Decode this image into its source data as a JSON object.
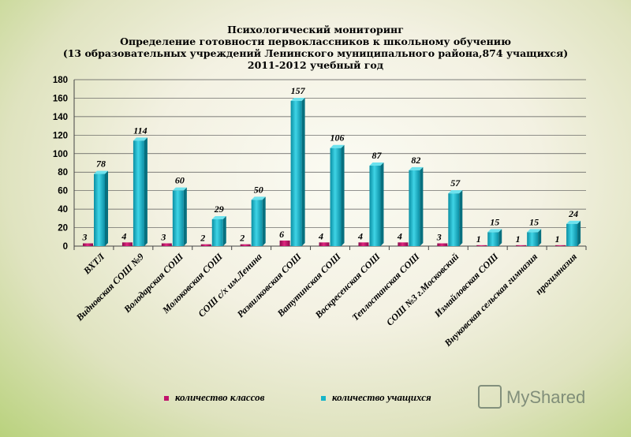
{
  "chart_data": {
    "type": "bar",
    "title": [
      "Психологический мониторинг",
      "Определение готовности первоклассников  к школьному обучению",
      "(13 образовательных учреждений Ленинского муниципального района,874  учащихся)",
      "2011-2012 учебный год"
    ],
    "categories": [
      "ВХТЛ",
      "Видновская СОШ №9",
      "Володарская СОШ",
      "Молоковская СОШ",
      "СОШ с/х им.Ленина",
      "Развилковская СОШ",
      "Ватутинская СОШ",
      "Воскресенская СОШ",
      "Теплостанская СОШ",
      "СОШ №3 г.Московский",
      "Измайловская СОШ",
      "Внуковская сельская гимназия",
      "прогимназия"
    ],
    "series": [
      {
        "name": "количество классов",
        "color": "#c0136b",
        "values": [
          3,
          4,
          3,
          2,
          2,
          6,
          4,
          4,
          4,
          3,
          1,
          1,
          1
        ]
      },
      {
        "name": "количество учащихся",
        "color": "#17b5c8",
        "values": [
          78,
          114,
          60,
          29,
          50,
          157,
          106,
          87,
          82,
          57,
          15,
          15,
          24
        ]
      }
    ],
    "ylim": [
      0,
      180
    ],
    "yticks": [
      0,
      20,
      40,
      60,
      80,
      100,
      120,
      140,
      160,
      180
    ],
    "grid": true,
    "legend": "bottom"
  },
  "watermark": "MyShared"
}
